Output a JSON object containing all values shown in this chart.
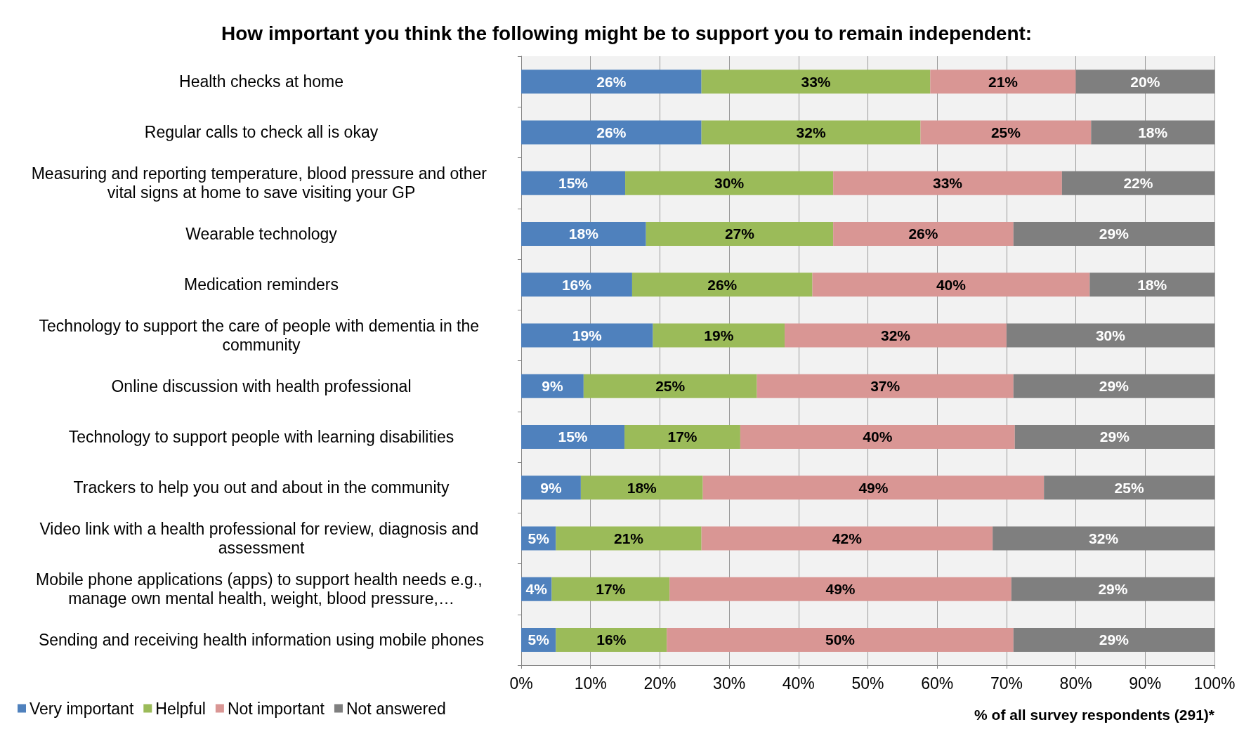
{
  "chart_data": {
    "type": "bar",
    "orientation": "horizontal",
    "stacked": true,
    "title": "How important you think the following might be to support you to remain independent:",
    "xlabel": "% of all survey respondents (291)*",
    "categories": [
      "Health checks at home",
      "Regular calls to check all is okay",
      "Measuring and reporting temperature, blood pressure and other vital signs at home to save visiting your GP",
      "Wearable technology",
      "Medication reminders",
      "Technology to support the care of people with dementia in the community",
      "Online discussion with health professional",
      "Technology to support people with learning disabilities",
      "Trackers to help you out and about in the community",
      "Video link with a health professional for review, diagnosis and assessment",
      "Mobile phone applications (apps) to support health needs e.g., manage own mental health, weight, blood pressure,…",
      "Sending and receiving health information using mobile phones"
    ],
    "series": [
      {
        "name": "Very important",
        "color": "#4f81bd",
        "values": [
          26,
          26.0,
          15,
          18,
          16,
          19,
          9,
          14.9,
          8.6,
          5,
          4.4,
          5
        ],
        "value_labels": [
          "26%",
          "26%",
          "15%",
          "18%",
          "16%",
          "19%",
          "9%",
          "15%",
          "9%",
          "5%",
          "4%",
          "5%"
        ]
      },
      {
        "name": "Helpful",
        "color": "#9bbb59",
        "values": [
          33,
          31.6,
          30,
          27,
          26,
          19,
          25,
          16.7,
          17.6,
          21,
          17.0,
          16
        ],
        "value_labels": [
          "33%",
          "32%",
          "30%",
          "27%",
          "26%",
          "19%",
          "25%",
          "17%",
          "18%",
          "21%",
          "17%",
          "16%"
        ]
      },
      {
        "name": "Not important",
        "color": "#d99694",
        "values": [
          21,
          24.6,
          33,
          26,
          40,
          32,
          37,
          39.6,
          49.2,
          42,
          49.3,
          50
        ],
        "value_labels": [
          "21%",
          "25%",
          "33%",
          "26%",
          "40%",
          "32%",
          "37%",
          "40%",
          "49%",
          "42%",
          "49%",
          "50%"
        ]
      },
      {
        "name": "Not answered",
        "color": "#7f7f7f",
        "values": [
          20,
          17.8,
          22,
          29,
          18,
          30,
          29,
          28.8,
          24.6,
          32,
          29.3,
          29
        ],
        "value_labels": [
          "20%",
          "18%",
          "22%",
          "29%",
          "18%",
          "30%",
          "29%",
          "29%",
          "25%",
          "32%",
          "29%",
          "29%"
        ]
      }
    ],
    "xlim": [
      0,
      100
    ],
    "xticks": [
      {
        "value": 0,
        "label": "0%"
      },
      {
        "value": 10,
        "label": "10%"
      },
      {
        "value": 20,
        "label": "20%"
      },
      {
        "value": 30,
        "label": "30%"
      },
      {
        "value": 40,
        "label": "40%"
      },
      {
        "value": 50,
        "label": "50%"
      },
      {
        "value": 60,
        "label": "60%"
      },
      {
        "value": 70,
        "label": "70%"
      },
      {
        "value": 80,
        "label": "80%"
      },
      {
        "value": 90,
        "label": "90%"
      },
      {
        "value": 100,
        "label": "100%"
      }
    ],
    "grid": "x",
    "legend": "bottom left"
  }
}
